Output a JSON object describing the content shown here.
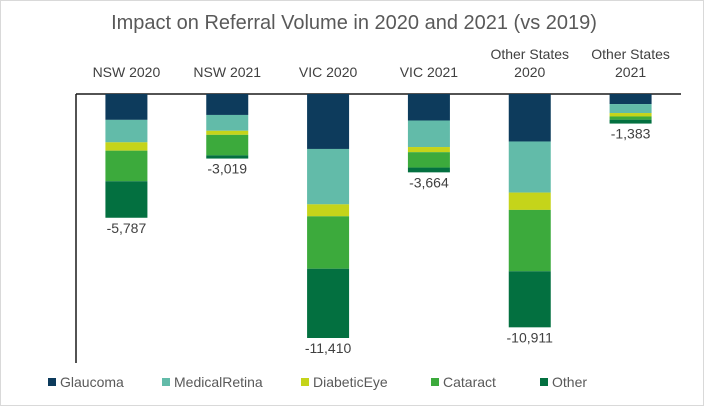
{
  "chart_data": {
    "type": "bar",
    "stacked": true,
    "title": "Impact on Referral Volume in 2020 and 2021 (vs 2019)",
    "categories": [
      [
        "NSW 2020"
      ],
      [
        "NSW 2021"
      ],
      [
        "VIC 2020"
      ],
      [
        "VIC 2021"
      ],
      [
        "Other States",
        "2020"
      ],
      [
        "Other States",
        "2021"
      ]
    ],
    "totals": [
      -5787,
      -3019,
      -11410,
      -3664,
      -10911,
      -1383
    ],
    "total_labels": [
      "-5,787",
      "-3,019",
      "-11,410",
      "-3,664",
      "-10,911",
      "-1,383"
    ],
    "ylim": [
      -12500,
      0
    ],
    "x_axis_position": "top",
    "legend_position": "bottom",
    "series": [
      {
        "name": "Glaucoma",
        "color": "#0d3b5c",
        "values": [
          -1210,
          -980,
          -2570,
          -1240,
          -2220,
          -470
        ]
      },
      {
        "name": "MedicalRetina",
        "color": "#62bba9",
        "values": [
          -1050,
          -740,
          -2590,
          -1240,
          -2390,
          -420
        ]
      },
      {
        "name": "DiabeticEye",
        "color": "#c5d41a",
        "values": [
          -390,
          -190,
          -560,
          -240,
          -810,
          -160
        ]
      },
      {
        "name": "Cataract",
        "color": "#3caa3c",
        "values": [
          -1430,
          -960,
          -2450,
          -720,
          -2870,
          -150
        ]
      },
      {
        "name": "Other",
        "color": "#037040",
        "values": [
          -1707,
          -149,
          -3240,
          -224,
          -2621,
          -183
        ]
      }
    ]
  }
}
